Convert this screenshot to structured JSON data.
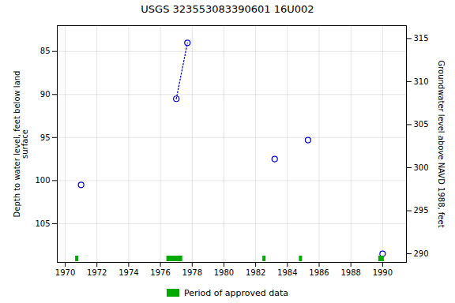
{
  "chart_data": {
    "type": "scatter",
    "title": "USGS 323553083390601 16U002",
    "series": [
      {
        "type": "scatter",
        "marker": "open_circle",
        "color": "#0000cc",
        "x": [
          1971.0,
          1977.0,
          1977.7,
          1983.2,
          1985.3,
          1990.0
        ],
        "values": [
          100.5,
          90.5,
          84.0,
          97.5,
          95.3,
          108.5
        ]
      },
      {
        "type": "line",
        "line_style": "dotted",
        "color": "#0000cc",
        "x": [
          1977.0,
          1977.7
        ],
        "values": [
          90.5,
          84.0
        ]
      },
      {
        "type": "bar",
        "name": "Period of approved data",
        "color": "#00aa00",
        "x": [
          1970.65,
          1976.4,
          1982.45,
          1984.75,
          1989.75
        ],
        "widths": [
          0.2,
          1.0,
          0.2,
          0.2,
          0.35
        ]
      }
    ],
    "xlim": [
      1969.5,
      1991.5
    ],
    "xticks": [
      1970,
      1972,
      1974,
      1976,
      1978,
      1980,
      1982,
      1984,
      1986,
      1988,
      1990
    ],
    "ylim": [
      109.5,
      82.0
    ],
    "yticks": [
      85,
      90,
      95,
      100,
      105
    ],
    "y2lim": [
      289.0,
      316.5
    ],
    "y2ticks": [
      290,
      295,
      300,
      305,
      310,
      315
    ],
    "ylabel": "Depth to water level, feet below land\nsurface",
    "y2label": "Groundwater level above NAVD 1988, feet",
    "grid": true,
    "legend": "bottom"
  }
}
